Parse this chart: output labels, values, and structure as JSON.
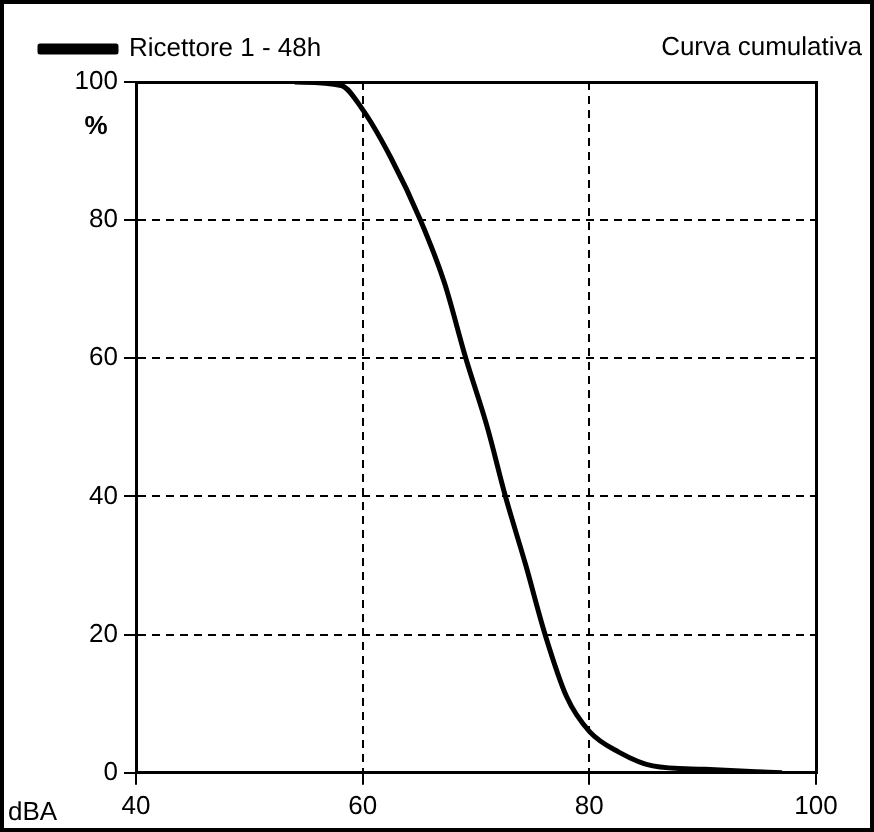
{
  "chart_data": {
    "type": "line",
    "title": "Curva cumulativa",
    "xlabel": "dBA",
    "ylabel": "%",
    "series": [
      {
        "name": "Ricettore 1 - 48h",
        "color": "#000000",
        "x": [
          54,
          58.1,
          60,
          62.5,
          65.1,
          67.2,
          69.1,
          71,
          72.6,
          74.4,
          76.1,
          78,
          80,
          82.6,
          85.6,
          90.2,
          97
        ],
        "values": [
          100,
          99.5,
          96,
          89,
          80,
          71,
          60,
          50,
          40,
          30,
          20,
          11,
          6,
          3,
          1,
          0.5,
          0
        ]
      }
    ],
    "xlim": [
      40,
      100
    ],
    "xticks": [
      40,
      60,
      80,
      100
    ],
    "ylim": [
      0,
      100
    ],
    "yticks": [
      0,
      20,
      40,
      60,
      80,
      100
    ],
    "grid": true,
    "legend": "top left",
    "marker": "none",
    "line_style": "solid"
  }
}
